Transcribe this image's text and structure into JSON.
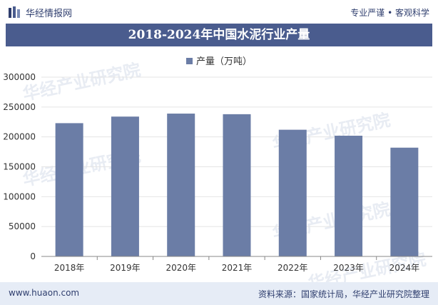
{
  "header": {
    "site_name": "华经情报网",
    "slogan": "专业严谨 • 客观科学"
  },
  "footer": {
    "site": "www.huaon.com",
    "source": "资料来源：国家统计局，华经产业研究院整理"
  },
  "colors": {
    "bar": "#6b7da6",
    "title_bg": "#4a5c8e",
    "footer_bg": "#e6ecf6"
  },
  "chart_data": {
    "type": "bar",
    "title": "2018-2024年中国水泥行业产量",
    "legend": "产量（万吨）",
    "categories": [
      "2018年",
      "2019年",
      "2020年",
      "2021年",
      "2022年",
      "2023年",
      "2024年"
    ],
    "values": [
      223000,
      234000,
      239000,
      238000,
      212000,
      202000,
      182000
    ],
    "ylim": [
      0,
      300000
    ],
    "yticks": [
      0,
      50000,
      100000,
      150000,
      200000,
      250000,
      300000
    ],
    "ytick_labels": [
      "0",
      "50000",
      "100000",
      "150000",
      "200000",
      "250000",
      "300000"
    ],
    "xlabel": "",
    "ylabel": ""
  }
}
